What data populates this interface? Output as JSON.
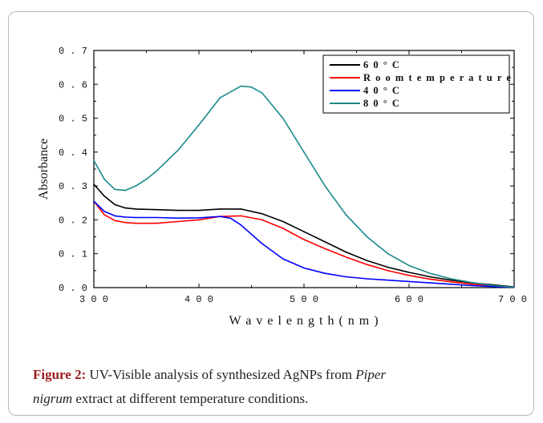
{
  "chart_data": {
    "type": "line",
    "xlabel": "W a v e l e n g t h  ( n m )",
    "ylabel": "Absorbance",
    "xlim": [
      300,
      700
    ],
    "ylim": [
      0.0,
      0.7
    ],
    "x_ticks": [
      "3 0 0",
      "4 0 0",
      "5 0 0",
      "6 0 0",
      "7 0 0"
    ],
    "y_ticks": [
      "0 . 0",
      "0 . 1",
      "0 . 2",
      "0 . 3",
      "0 . 4",
      "0 . 5",
      "0 . 6",
      "0 . 7"
    ],
    "legend_position": "top-right",
    "grid": false,
    "series": [
      {
        "name": "6 0 ° C",
        "color": "#000000",
        "x": [
          300,
          310,
          320,
          330,
          340,
          360,
          380,
          400,
          420,
          440,
          460,
          480,
          500,
          520,
          540,
          560,
          580,
          600,
          620,
          640,
          660,
          680,
          700
        ],
        "values": [
          0.305,
          0.27,
          0.245,
          0.235,
          0.232,
          0.23,
          0.228,
          0.228,
          0.232,
          0.232,
          0.218,
          0.195,
          0.165,
          0.135,
          0.105,
          0.08,
          0.06,
          0.045,
          0.032,
          0.022,
          0.014,
          0.008,
          0.002
        ]
      },
      {
        "name": "R o o m  t e m p e r a t u r e",
        "color": "#ff0000",
        "x": [
          300,
          310,
          320,
          330,
          340,
          360,
          380,
          400,
          420,
          440,
          460,
          480,
          500,
          520,
          540,
          560,
          580,
          600,
          620,
          640,
          660,
          680,
          700
        ],
        "values": [
          0.255,
          0.215,
          0.198,
          0.192,
          0.19,
          0.19,
          0.195,
          0.2,
          0.21,
          0.212,
          0.2,
          0.175,
          0.142,
          0.115,
          0.09,
          0.068,
          0.05,
          0.036,
          0.025,
          0.017,
          0.01,
          0.005,
          0.001
        ]
      },
      {
        "name": "4 0 ° C",
        "color": "#0000ff",
        "x": [
          300,
          310,
          320,
          330,
          340,
          360,
          380,
          400,
          420,
          430,
          440,
          460,
          480,
          500,
          520,
          540,
          560,
          580,
          600,
          620,
          640,
          660,
          680,
          700
        ],
        "values": [
          0.255,
          0.225,
          0.212,
          0.208,
          0.207,
          0.207,
          0.205,
          0.206,
          0.21,
          0.205,
          0.185,
          0.13,
          0.085,
          0.058,
          0.042,
          0.032,
          0.026,
          0.022,
          0.018,
          0.014,
          0.01,
          0.006,
          0.003,
          0.001
        ]
      },
      {
        "name": "8 0 ° C",
        "color": "#1b8a8a",
        "x": [
          300,
          310,
          320,
          330,
          340,
          350,
          360,
          380,
          400,
          420,
          440,
          450,
          460,
          480,
          500,
          520,
          540,
          560,
          580,
          600,
          620,
          640,
          660,
          680,
          700
        ],
        "values": [
          0.375,
          0.32,
          0.29,
          0.287,
          0.3,
          0.32,
          0.345,
          0.405,
          0.48,
          0.56,
          0.595,
          0.592,
          0.575,
          0.5,
          0.4,
          0.3,
          0.215,
          0.15,
          0.1,
          0.065,
          0.042,
          0.026,
          0.015,
          0.006,
          0.001
        ]
      }
    ]
  },
  "caption": {
    "label": "Figure 2:",
    "text_1": " UV-Visible analysis of synthesized AgNPs from ",
    "italic_1": "Piper",
    "italic_2": "nigrum",
    "text_2": " extract at different temperature conditions."
  }
}
